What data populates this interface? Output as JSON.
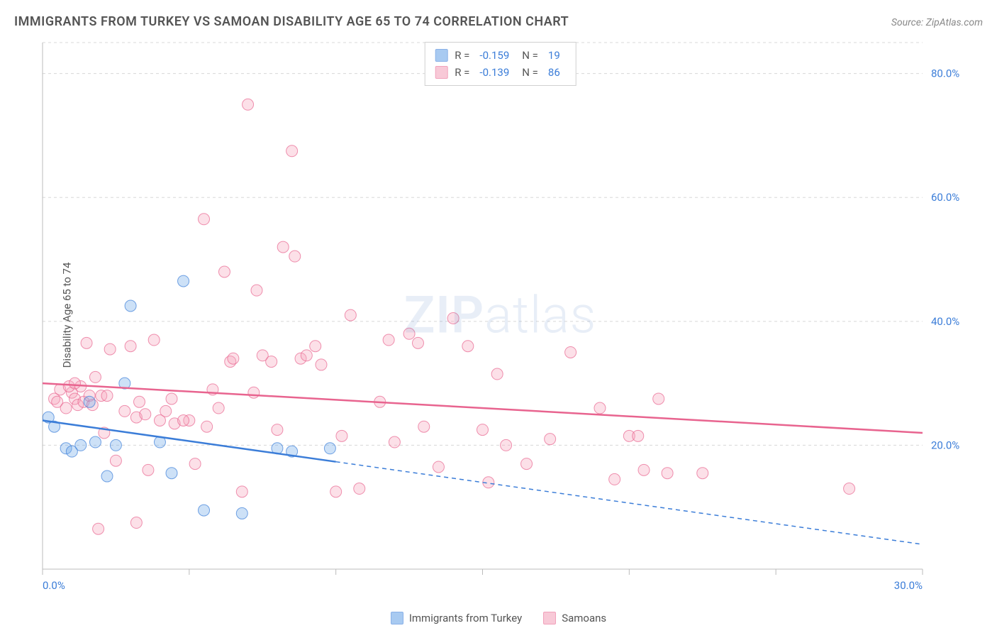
{
  "title": "IMMIGRANTS FROM TURKEY VS SAMOAN DISABILITY AGE 65 TO 74 CORRELATION CHART",
  "source": "Source: ZipAtlas.com",
  "watermark": "ZIPatlas",
  "ylabel": "Disability Age 65 to 74",
  "chart": {
    "type": "scatter",
    "xlim": [
      0,
      30
    ],
    "ylim": [
      0,
      85
    ],
    "xticks": [
      0,
      5,
      10,
      15,
      20,
      25,
      30
    ],
    "yticks": [
      20,
      40,
      60,
      80
    ],
    "xtick_labels": [
      "0.0%",
      "",
      "",
      "",
      "",
      "",
      "30.0%"
    ],
    "ytick_labels": [
      "20.0%",
      "40.0%",
      "60.0%",
      "80.0%"
    ],
    "grid_color": "#d8d8d8",
    "axis_color": "#bbbbbb",
    "tick_label_color": "#3b7dd8",
    "tick_label_fontsize": 15,
    "background": "#ffffff",
    "marker_radius": 8,
    "marker_opacity": 0.35,
    "series": [
      {
        "name": "Immigrants from Turkey",
        "color": "#6fa8e8",
        "stroke": "#3b7dd8",
        "R": "-0.159",
        "N": "19",
        "trend_y_at_x0": 24,
        "trend_y_at_xmax": 4,
        "solid_until_x": 10,
        "points": [
          [
            0.2,
            24.5
          ],
          [
            0.4,
            23.0
          ],
          [
            0.8,
            19.5
          ],
          [
            1.0,
            19.0
          ],
          [
            1.3,
            20.0
          ],
          [
            1.6,
            27.0
          ],
          [
            1.8,
            20.5
          ],
          [
            2.2,
            15.0
          ],
          [
            2.5,
            20.0
          ],
          [
            2.8,
            30.0
          ],
          [
            3.0,
            42.5
          ],
          [
            4.0,
            20.5
          ],
          [
            4.4,
            15.5
          ],
          [
            4.8,
            46.5
          ],
          [
            5.5,
            9.5
          ],
          [
            6.8,
            9.0
          ],
          [
            8.0,
            19.5
          ],
          [
            8.5,
            19.0
          ],
          [
            9.8,
            19.5
          ]
        ]
      },
      {
        "name": "Samoans",
        "color": "#f5a6bd",
        "stroke": "#e8648f",
        "R": "-0.139",
        "N": "86",
        "trend_y_at_x0": 30,
        "trend_y_at_xmax": 22,
        "solid_until_x": 30,
        "points": [
          [
            0.4,
            27.5
          ],
          [
            0.5,
            27.0
          ],
          [
            0.6,
            29.0
          ],
          [
            0.8,
            26.0
          ],
          [
            1.0,
            28.5
          ],
          [
            1.1,
            27.5
          ],
          [
            1.2,
            26.5
          ],
          [
            1.3,
            29.5
          ],
          [
            1.4,
            27.0
          ],
          [
            1.5,
            36.5
          ],
          [
            1.6,
            28.0
          ],
          [
            1.7,
            26.5
          ],
          [
            1.8,
            31.0
          ],
          [
            2.0,
            28.0
          ],
          [
            2.1,
            22.0
          ],
          [
            2.3,
            35.5
          ],
          [
            2.5,
            17.5
          ],
          [
            2.8,
            25.5
          ],
          [
            3.0,
            36.0
          ],
          [
            3.2,
            24.5
          ],
          [
            3.3,
            27.0
          ],
          [
            3.5,
            25.0
          ],
          [
            3.6,
            16.0
          ],
          [
            3.8,
            37.0
          ],
          [
            4.0,
            24.0
          ],
          [
            4.2,
            25.5
          ],
          [
            4.4,
            27.5
          ],
          [
            4.5,
            23.5
          ],
          [
            5.0,
            24.0
          ],
          [
            5.2,
            17.0
          ],
          [
            5.5,
            56.5
          ],
          [
            5.6,
            23.0
          ],
          [
            5.8,
            29.0
          ],
          [
            6.0,
            26.0
          ],
          [
            6.2,
            48.0
          ],
          [
            6.4,
            33.5
          ],
          [
            6.8,
            12.5
          ],
          [
            7.0,
            75.0
          ],
          [
            7.2,
            28.5
          ],
          [
            7.3,
            45.0
          ],
          [
            7.5,
            34.5
          ],
          [
            8.0,
            22.5
          ],
          [
            8.2,
            52.0
          ],
          [
            8.5,
            67.5
          ],
          [
            8.6,
            50.5
          ],
          [
            8.8,
            34.0
          ],
          [
            9.0,
            34.5
          ],
          [
            9.3,
            36.0
          ],
          [
            9.5,
            33.0
          ],
          [
            10.0,
            12.5
          ],
          [
            10.2,
            21.5
          ],
          [
            10.5,
            41.0
          ],
          [
            10.8,
            13.0
          ],
          [
            11.5,
            27.0
          ],
          [
            11.8,
            37.0
          ],
          [
            12.0,
            20.5
          ],
          [
            12.5,
            38.0
          ],
          [
            12.8,
            36.5
          ],
          [
            13.0,
            23.0
          ],
          [
            13.5,
            16.5
          ],
          [
            14.0,
            40.5
          ],
          [
            14.5,
            36.0
          ],
          [
            15.0,
            22.5
          ],
          [
            15.2,
            14.0
          ],
          [
            15.5,
            31.5
          ],
          [
            15.8,
            20.0
          ],
          [
            16.5,
            17.0
          ],
          [
            17.3,
            21.0
          ],
          [
            18.0,
            35.0
          ],
          [
            19.0,
            26.0
          ],
          [
            19.5,
            14.5
          ],
          [
            20.0,
            21.5
          ],
          [
            20.3,
            21.5
          ],
          [
            20.5,
            16.0
          ],
          [
            21.0,
            27.5
          ],
          [
            21.3,
            15.5
          ],
          [
            22.5,
            15.5
          ],
          [
            27.5,
            13.0
          ],
          [
            3.2,
            7.5
          ],
          [
            1.9,
            6.5
          ],
          [
            0.9,
            29.5
          ],
          [
            2.2,
            28.0
          ],
          [
            1.1,
            30.0
          ],
          [
            6.5,
            34.0
          ],
          [
            7.8,
            33.5
          ],
          [
            4.8,
            24.0
          ]
        ]
      }
    ]
  },
  "legend": {
    "series1_label": "Immigrants from Turkey",
    "series2_label": "Samoans",
    "r_label": "R =",
    "n_label": "N ="
  }
}
